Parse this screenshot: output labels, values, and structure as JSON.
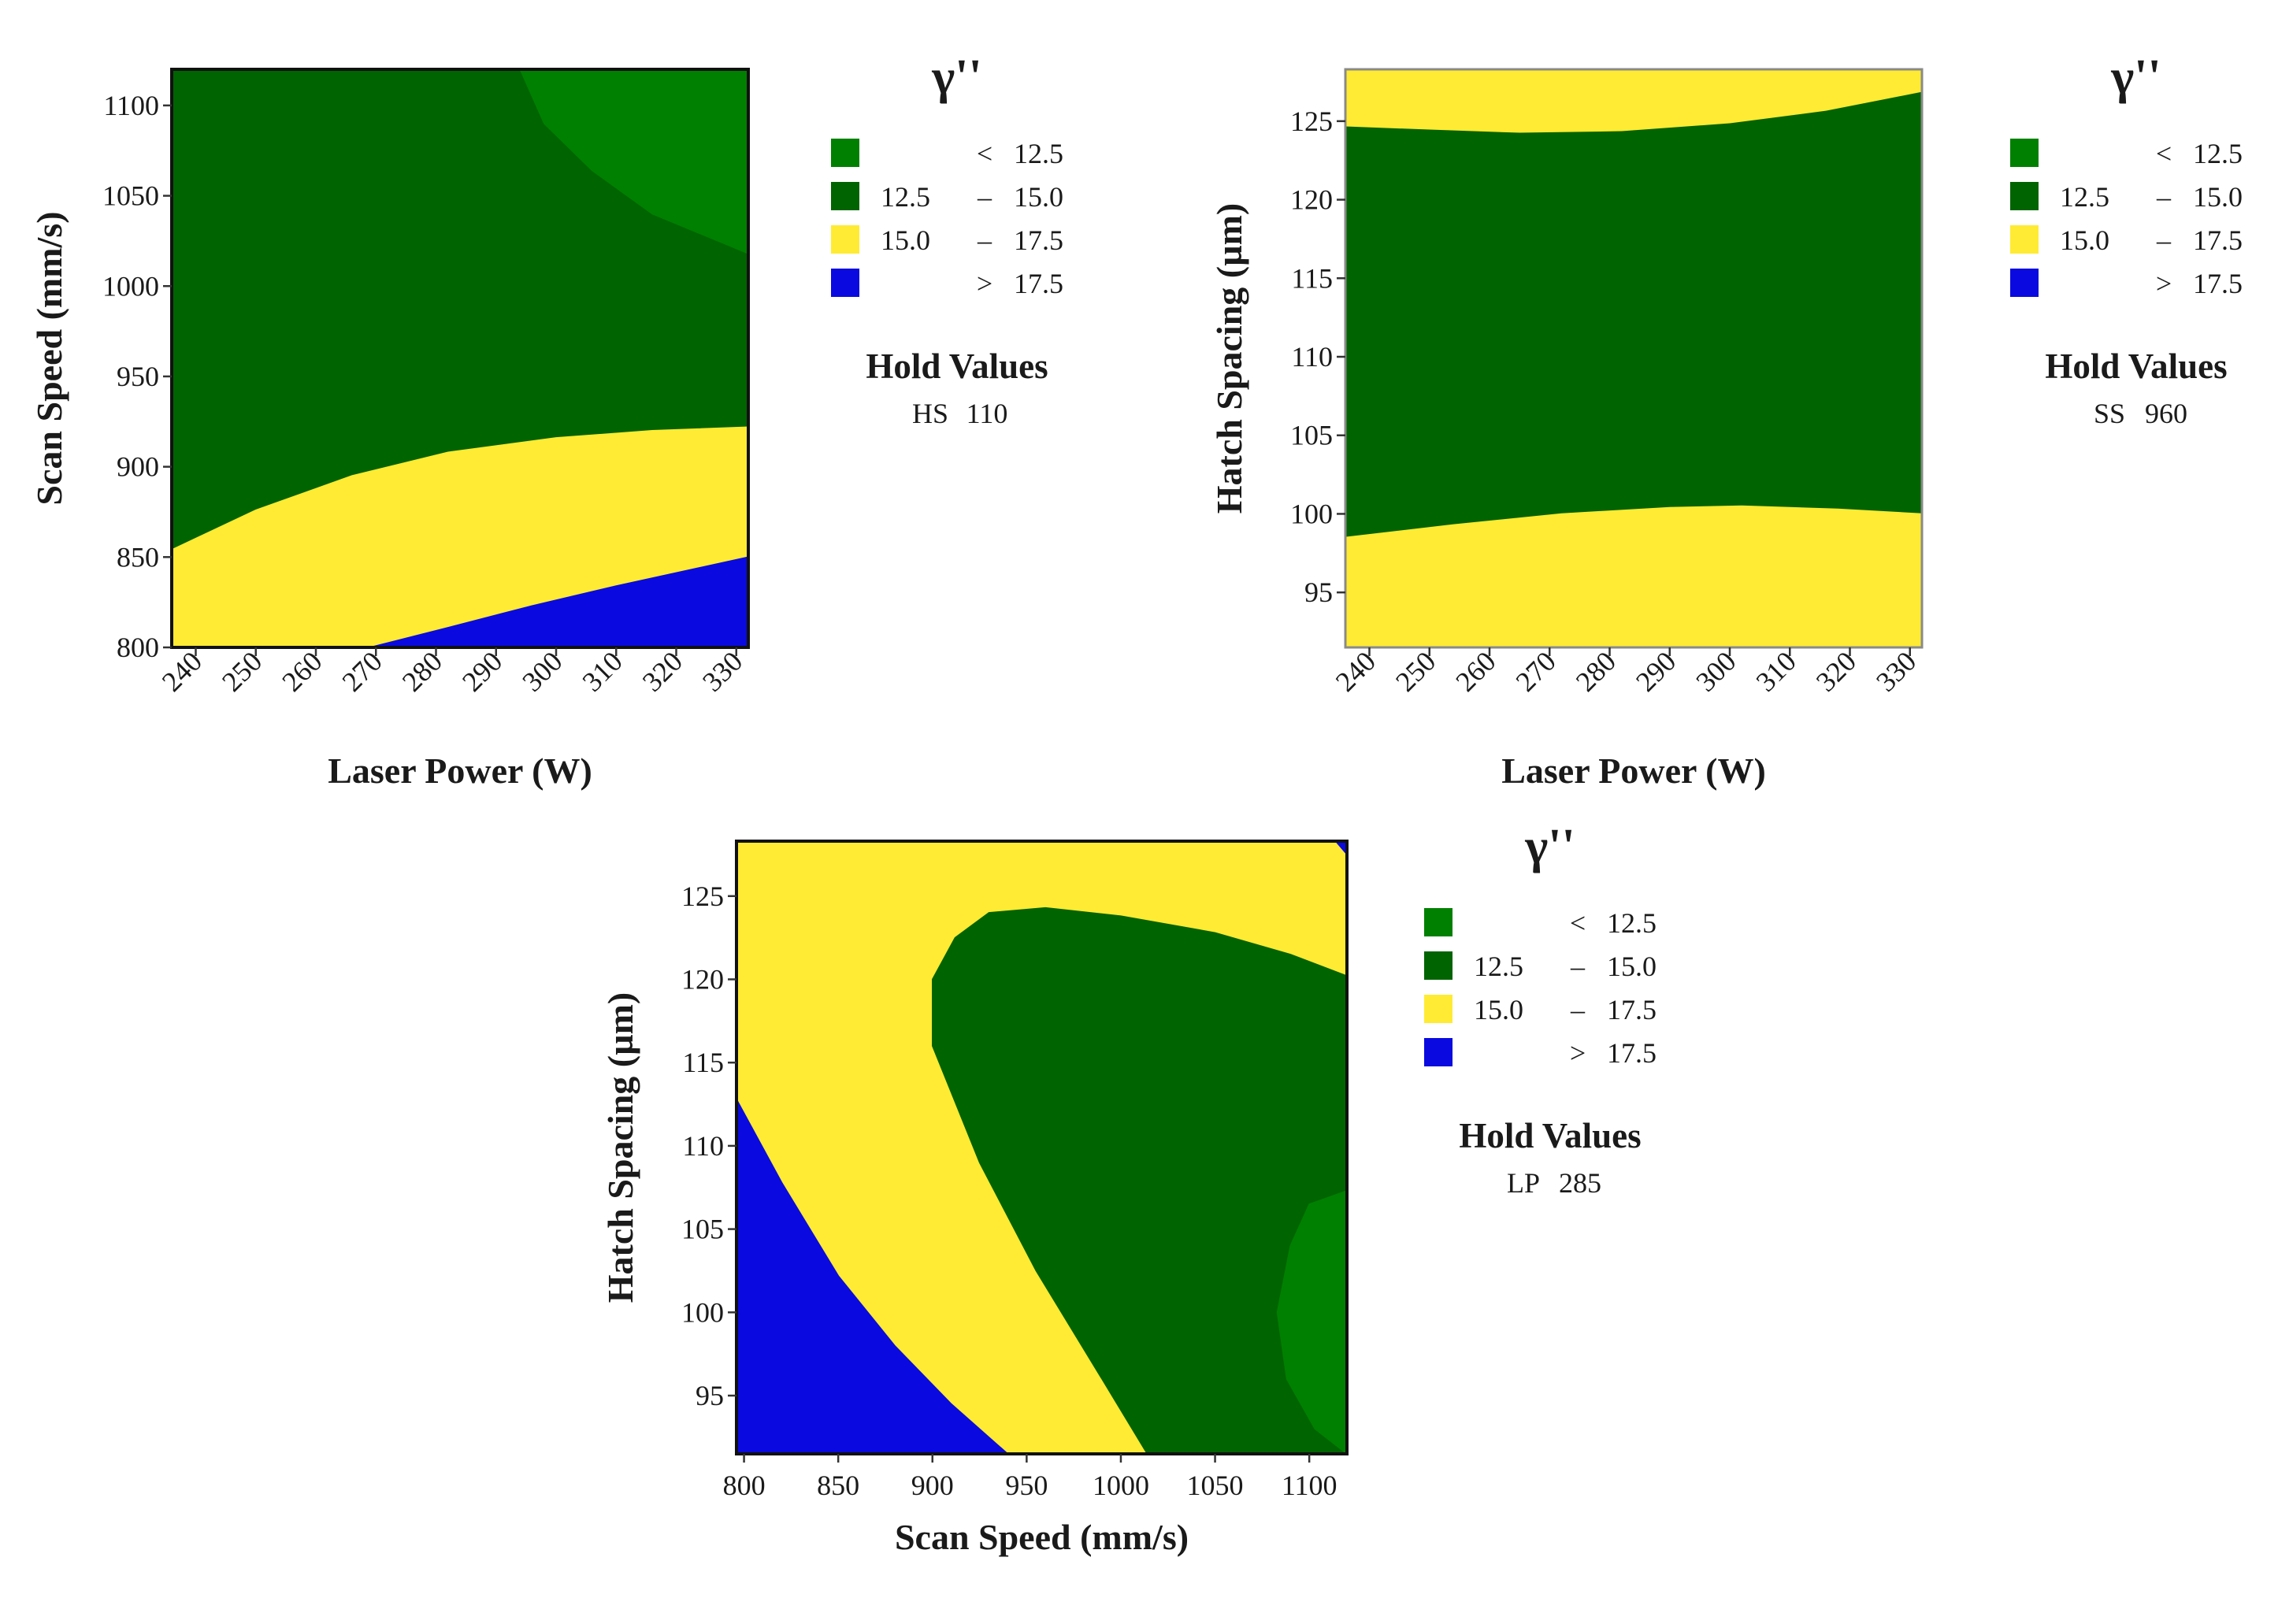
{
  "chart_data": [
    {
      "type": "contour",
      "id": "lp-ss",
      "xlabel": "Laser Power (W)",
      "ylabel": "Scan Speed (mm/s)",
      "xlim": [
        236,
        332
      ],
      "ylim": [
        800,
        1120
      ],
      "xticks": [
        "240",
        "250",
        "260",
        "270",
        "280",
        "290",
        "300",
        "310",
        "320",
        "330"
      ],
      "yticks": [
        "800",
        "850",
        "900",
        "950",
        "1000",
        "1050",
        "1100"
      ],
      "x_tick_rotation": "rotated",
      "background": "#006400",
      "regions": [
        {
          "name": "region-lt-12.5",
          "color": "#008000",
          "points": [
            [
              294,
              1120
            ],
            [
              298,
              1090
            ],
            [
              306,
              1064
            ],
            [
              316,
              1040
            ],
            [
              332,
              1018
            ],
            [
              332,
              1120
            ]
          ]
        },
        {
          "name": "region-15-17.5",
          "color": "#ffeb33",
          "points": [
            [
              236,
              854
            ],
            [
              250,
              876
            ],
            [
              266,
              895
            ],
            [
              282,
              908
            ],
            [
              300,
              916
            ],
            [
              316,
              920
            ],
            [
              332,
              922
            ],
            [
              332,
              800
            ],
            [
              236,
              800
            ]
          ]
        },
        {
          "name": "region-gt-17.5",
          "color": "#0a0ae0",
          "points": [
            [
              269,
              800
            ],
            [
              282,
              811
            ],
            [
              296,
              823
            ],
            [
              310,
              834
            ],
            [
              332,
              850
            ],
            [
              332,
              800
            ]
          ]
        }
      ],
      "legend": {
        "title": "γ''",
        "entries": [
          {
            "color": "#008000",
            "lower": "",
            "op": "<",
            "upper": "12.5"
          },
          {
            "color": "#006400",
            "lower": "12.5",
            "op": "–",
            "upper": "15.0"
          },
          {
            "color": "#ffeb33",
            "lower": "15.0",
            "op": "–",
            "upper": "17.5"
          },
          {
            "color": "#0a0ae0",
            "lower": "",
            "op": ">",
            "upper": "17.5"
          }
        ]
      },
      "hold": {
        "title": "Hold Values",
        "name": "HS",
        "value": "110"
      }
    },
    {
      "type": "contour",
      "id": "lp-hs",
      "xlabel": "Laser Power (W)",
      "ylabel": "Hatch Spacing (µm)",
      "xlim": [
        236,
        332
      ],
      "ylim": [
        91.5,
        128.3
      ],
      "xticks": [
        "240",
        "250",
        "260",
        "270",
        "280",
        "290",
        "300",
        "310",
        "320",
        "330"
      ],
      "yticks": [
        "95",
        "100",
        "105",
        "110",
        "115",
        "120",
        "125"
      ],
      "x_tick_rotation": "rotated",
      "background": "#006400",
      "regions": [
        {
          "name": "region-15-17.5-top",
          "color": "#ffeb33",
          "points": [
            [
              236,
              124.7
            ],
            [
              250,
              124.5
            ],
            [
              265,
              124.3
            ],
            [
              282,
              124.4
            ],
            [
              300,
              124.9
            ],
            [
              316,
              125.7
            ],
            [
              332,
              126.9
            ],
            [
              332,
              128.3
            ],
            [
              236,
              128.3
            ]
          ]
        },
        {
          "name": "region-15-17.5-bottom",
          "color": "#ffeb33",
          "points": [
            [
              236,
              98.5
            ],
            [
              254,
              99.3
            ],
            [
              272,
              100.0
            ],
            [
              290,
              100.4
            ],
            [
              302,
              100.5
            ],
            [
              318,
              100.3
            ],
            [
              332,
              100.0
            ],
            [
              332,
              91.5
            ],
            [
              236,
              91.5
            ]
          ]
        }
      ],
      "legend": {
        "title": "γ''",
        "entries": [
          {
            "color": "#008000",
            "lower": "",
            "op": "<",
            "upper": "12.5"
          },
          {
            "color": "#006400",
            "lower": "12.5",
            "op": "–",
            "upper": "15.0"
          },
          {
            "color": "#ffeb33",
            "lower": "15.0",
            "op": "–",
            "upper": "17.5"
          },
          {
            "color": "#0a0ae0",
            "lower": "",
            "op": ">",
            "upper": "17.5"
          }
        ]
      },
      "hold": {
        "title": "Hold Values",
        "name": "SS",
        "value": "960"
      }
    },
    {
      "type": "contour",
      "id": "ss-hs",
      "xlabel": "Scan Speed (mm/s)",
      "ylabel": "Hatch Spacing (µm)",
      "xlim": [
        796,
        1120
      ],
      "ylim": [
        91.5,
        128.3
      ],
      "xticks": [
        "800",
        "850",
        "900",
        "950",
        "1000",
        "1050",
        "1100"
      ],
      "yticks": [
        "95",
        "100",
        "105",
        "110",
        "115",
        "120",
        "125"
      ],
      "x_tick_rotation": "horizontal",
      "background": "#ffeb33",
      "regions": [
        {
          "name": "region-12.5-15",
          "color": "#006400",
          "points": [
            [
              1014,
              91.5
            ],
            [
              990,
              96
            ],
            [
              955,
              102.5
            ],
            [
              925,
              109
            ],
            [
              900,
              116
            ],
            [
              900,
              120
            ],
            [
              912,
              122.5
            ],
            [
              930,
              124
            ],
            [
              960,
              124.3
            ],
            [
              1000,
              123.8
            ],
            [
              1050,
              122.8
            ],
            [
              1090,
              121.5
            ],
            [
              1120,
              120.2
            ],
            [
              1120,
              91.5
            ]
          ]
        },
        {
          "name": "region-lt-12.5",
          "color": "#008000",
          "points": [
            [
              1120,
              107.3
            ],
            [
              1100,
              106.5
            ],
            [
              1090,
              104
            ],
            [
              1083,
              100
            ],
            [
              1088,
              96
            ],
            [
              1103,
              93
            ],
            [
              1120,
              91.5
            ]
          ]
        },
        {
          "name": "region-gt-17.5",
          "color": "#0a0ae0",
          "points": [
            [
              796,
              112.8
            ],
            [
              820,
              107.8
            ],
            [
              850,
              102.2
            ],
            [
              880,
              98
            ],
            [
              910,
              94.5
            ],
            [
              940,
              91.5
            ],
            [
              796,
              91.5
            ]
          ]
        },
        {
          "name": "region-gt-17.5-corner",
          "color": "#0a0ae0",
          "points": [
            [
              1114,
              128.3
            ],
            [
              1120,
              128.3
            ],
            [
              1120,
              127.5
            ]
          ]
        }
      ],
      "legend": {
        "title": "γ''",
        "entries": [
          {
            "color": "#008000",
            "lower": "",
            "op": "<",
            "upper": "12.5"
          },
          {
            "color": "#006400",
            "lower": "12.5",
            "op": "–",
            "upper": "15.0"
          },
          {
            "color": "#ffeb33",
            "lower": "15.0",
            "op": "–",
            "upper": "17.5"
          },
          {
            "color": "#0a0ae0",
            "lower": "",
            "op": ">",
            "upper": "17.5"
          }
        ]
      },
      "hold": {
        "title": "Hold Values",
        "name": "LP",
        "value": "285"
      }
    }
  ]
}
